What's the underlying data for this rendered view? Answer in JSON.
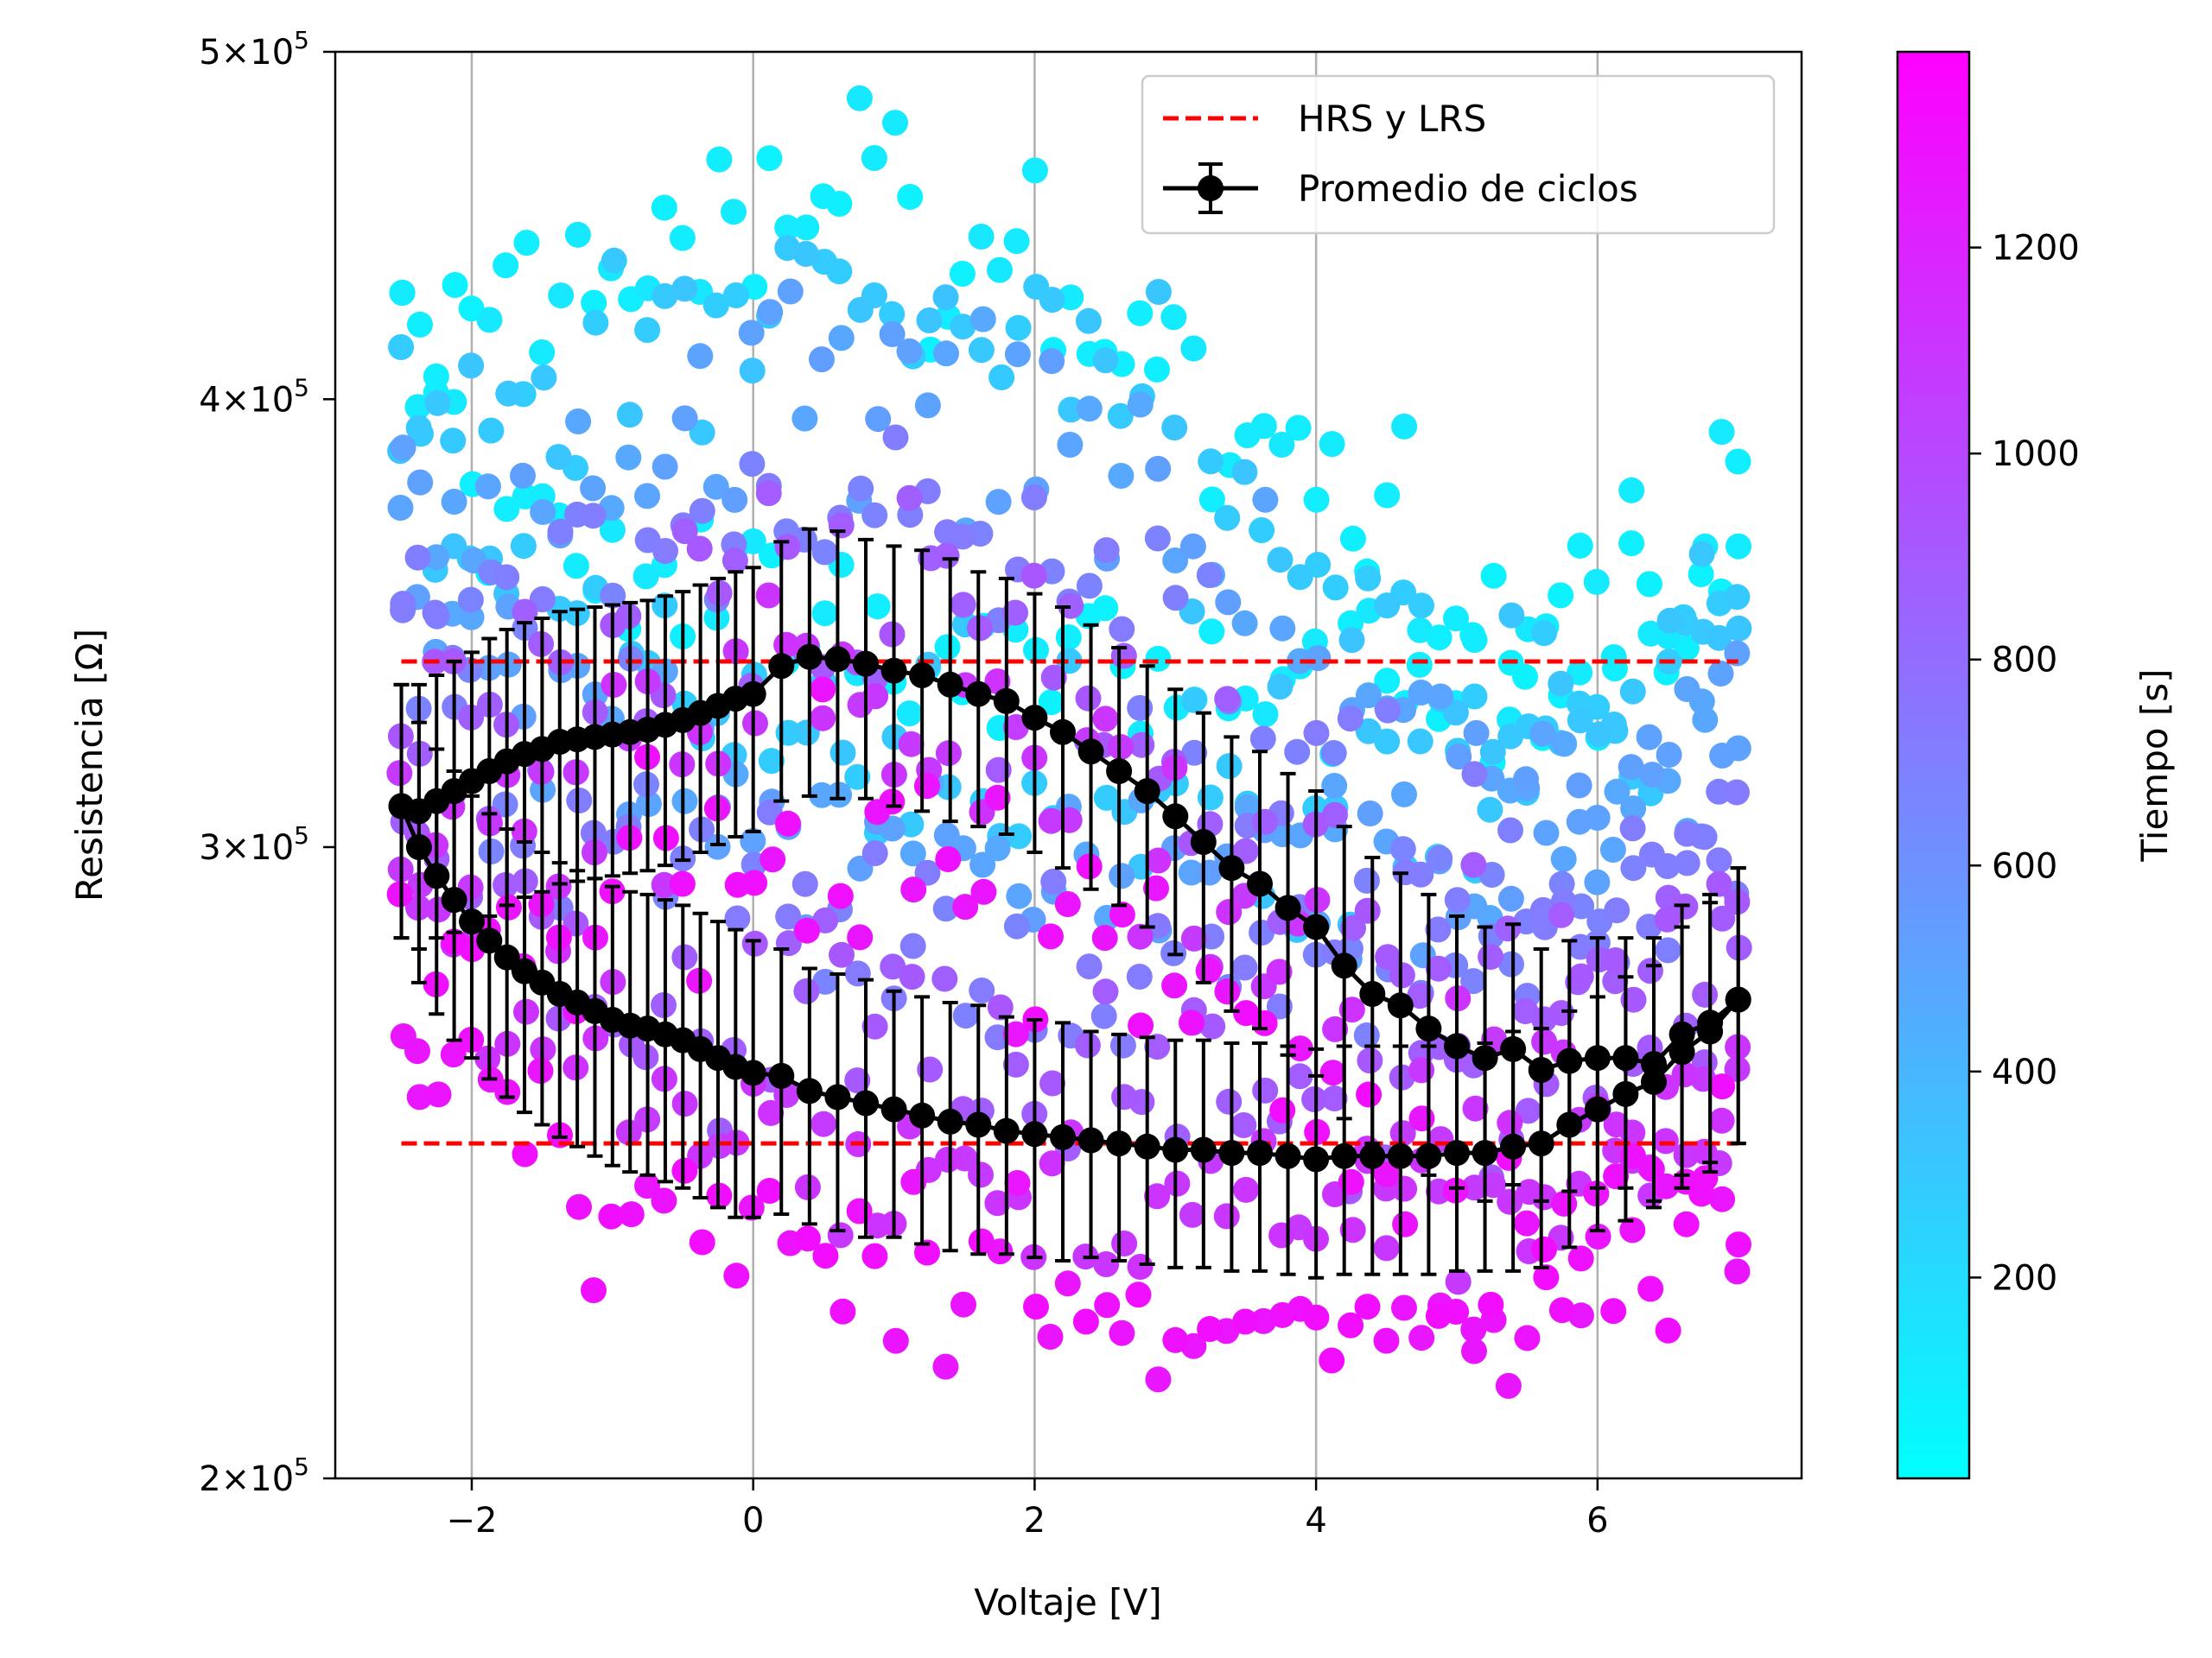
{
  "chart_data": {
    "type": "scatter",
    "xlabel": "Voltaje [V]",
    "ylabel": "Resistencia [Ω]",
    "xlim": [
      -2.97,
      7.45
    ],
    "ylim": [
      200000,
      500000
    ],
    "yscale": "log",
    "x_ticks": [
      -2,
      0,
      2,
      4,
      6
    ],
    "x_tick_labels": [
      "−2",
      "0",
      "2",
      "4",
      "6"
    ],
    "y_ticks": [
      {
        "value": 500000,
        "mant": "5",
        "exp": "5"
      },
      {
        "value": 400000,
        "mant": "4",
        "exp": "5"
      },
      {
        "value": 300000,
        "mant": "3",
        "exp": "5"
      },
      {
        "value": 200000,
        "mant": "2",
        "exp": "5"
      }
    ],
    "grid": "x-major",
    "legend_position": "top-right",
    "colorbar": {
      "label": "Tiempo [s]",
      "range": [
        5,
        1390
      ],
      "ticks": [
        200,
        400,
        600,
        800,
        1000,
        1200
      ],
      "tick_labels": [
        "200",
        "400",
        "600",
        "800",
        "1000",
        "1200"
      ],
      "colormap": "cool",
      "color_low": "#00ffff",
      "color_high": "#ff00ff"
    },
    "series": [
      {
        "name": "HRS y LRS",
        "kind": "dashed-lines",
        "color": "#ff0000",
        "hrs_value": 338000,
        "lrs_value": 248000,
        "x_range": [
          -2.5,
          7.0
        ]
      },
      {
        "name": "Promedio de ciclos",
        "kind": "errorbar-line",
        "color": "#000000",
        "forward": [
          [
            -2.5,
            308000,
            25000
          ],
          [
            -2.375,
            300000,
            25000
          ],
          [
            -2.25,
            294500,
            25000
          ],
          [
            -2.125,
            290000,
            25000
          ],
          [
            -2.0,
            286000,
            24000
          ],
          [
            -1.875,
            282500,
            24000
          ],
          [
            -1.75,
            279500,
            24000
          ],
          [
            -1.625,
            277000,
            24000
          ],
          [
            -1.5,
            275000,
            24000
          ],
          [
            -1.375,
            273000,
            24000
          ],
          [
            -1.25,
            271500,
            24000
          ],
          [
            -1.125,
            270000,
            24000
          ],
          [
            -1.0,
            268500,
            24000
          ],
          [
            -0.875,
            267500,
            24000
          ],
          [
            -0.75,
            267000,
            24000
          ],
          [
            -0.625,
            266000,
            24000
          ],
          [
            -0.5,
            265000,
            24000
          ],
          [
            -0.375,
            263500,
            24000
          ],
          [
            -0.25,
            262000,
            24000
          ],
          [
            -0.125,
            260500,
            24000
          ],
          [
            0.0,
            259500,
            23000
          ],
          [
            0.2,
            259000,
            22000
          ],
          [
            0.4,
            256500,
            21000
          ],
          [
            0.6,
            255500,
            21000
          ],
          [
            0.8,
            254500,
            21000
          ],
          [
            1.0,
            253500,
            20000
          ],
          [
            1.2,
            252500,
            20000
          ],
          [
            1.4,
            251500,
            20000
          ],
          [
            1.6,
            251000,
            20000
          ],
          [
            1.8,
            250000,
            19000
          ],
          [
            2.0,
            249500,
            19000
          ],
          [
            2.2,
            249000,
            19000
          ],
          [
            2.4,
            248500,
            18000
          ],
          [
            2.6,
            248000,
            18000
          ],
          [
            2.8,
            247500,
            18000
          ],
          [
            3.0,
            247000,
            18000
          ],
          [
            3.2,
            247000,
            18000
          ],
          [
            3.4,
            246500,
            18000
          ],
          [
            3.6,
            246500,
            18000
          ],
          [
            3.8,
            246000,
            18000
          ],
          [
            4.0,
            245500,
            18000
          ],
          [
            4.2,
            246000,
            18000
          ],
          [
            4.4,
            246000,
            18000
          ],
          [
            4.6,
            246000,
            18000
          ],
          [
            4.8,
            246000,
            18000
          ],
          [
            5.0,
            246500,
            18000
          ],
          [
            5.2,
            246500,
            18000
          ],
          [
            5.4,
            247500,
            19000
          ],
          [
            5.6,
            248000,
            19000
          ],
          [
            5.8,
            251000,
            19000
          ],
          [
            6.0,
            253500,
            19000
          ],
          [
            6.2,
            256000,
            20000
          ],
          [
            6.4,
            258000,
            20000
          ],
          [
            6.6,
            263000,
            22000
          ],
          [
            6.8,
            266500,
            23000
          ],
          [
            7.0,
            272000,
            24000
          ]
        ],
        "backward": [
          [
            7.0,
            272000,
            24000
          ],
          [
            6.8,
            268000,
            23000
          ],
          [
            6.6,
            266000,
            23000
          ],
          [
            6.4,
            261000,
            22000
          ],
          [
            6.2,
            262000,
            21000
          ],
          [
            6.0,
            262000,
            21000
          ],
          [
            5.8,
            261500,
            21000
          ],
          [
            5.6,
            260000,
            21000
          ],
          [
            5.4,
            263500,
            22000
          ],
          [
            5.2,
            262000,
            23000
          ],
          [
            5.0,
            264000,
            23000
          ],
          [
            4.8,
            267000,
            24000
          ],
          [
            4.6,
            271000,
            24000
          ],
          [
            4.4,
            273000,
            25000
          ],
          [
            4.2,
            278000,
            26000
          ],
          [
            4.0,
            285000,
            26000
          ],
          [
            3.8,
            288500,
            26000
          ],
          [
            3.6,
            293000,
            26000
          ],
          [
            3.4,
            296000,
            26000
          ],
          [
            3.2,
            301000,
            26000
          ],
          [
            3.0,
            306000,
            26000
          ],
          [
            2.8,
            311000,
            26000
          ],
          [
            2.6,
            315000,
            26000
          ],
          [
            2.4,
            319000,
            27000
          ],
          [
            2.2,
            323000,
            27000
          ],
          [
            2.0,
            326000,
            27000
          ],
          [
            1.8,
            329500,
            27000
          ],
          [
            1.6,
            331000,
            27000
          ],
          [
            1.4,
            333000,
            28000
          ],
          [
            1.2,
            335000,
            28000
          ],
          [
            1.0,
            336000,
            28000
          ],
          [
            0.8,
            337500,
            28000
          ],
          [
            0.6,
            338500,
            29000
          ],
          [
            0.4,
            339000,
            29000
          ],
          [
            0.2,
            337000,
            28000
          ],
          [
            0.0,
            331000,
            28000
          ],
          [
            -0.125,
            330000,
            28000
          ],
          [
            -0.25,
            328500,
            28000
          ],
          [
            -0.375,
            327000,
            28000
          ],
          [
            -0.5,
            325500,
            28000
          ],
          [
            -0.625,
            324500,
            28000
          ],
          [
            -0.75,
            323500,
            28000
          ],
          [
            -0.875,
            323000,
            28000
          ],
          [
            -1.0,
            322500,
            28000
          ],
          [
            -1.125,
            322000,
            28000
          ],
          [
            -1.25,
            321500,
            28000
          ],
          [
            -1.375,
            321000,
            28000
          ],
          [
            -1.5,
            319500,
            28000
          ],
          [
            -1.625,
            318500,
            28000
          ],
          [
            -1.75,
            317000,
            28000
          ],
          [
            -1.875,
            315000,
            28000
          ],
          [
            -2.0,
            313000,
            27000
          ],
          [
            -2.125,
            311000,
            27000
          ],
          [
            -2.25,
            309000,
            26000
          ],
          [
            -2.375,
            307000,
            26000
          ],
          [
            -2.5,
            308000,
            25000
          ]
        ]
      }
    ]
  }
}
